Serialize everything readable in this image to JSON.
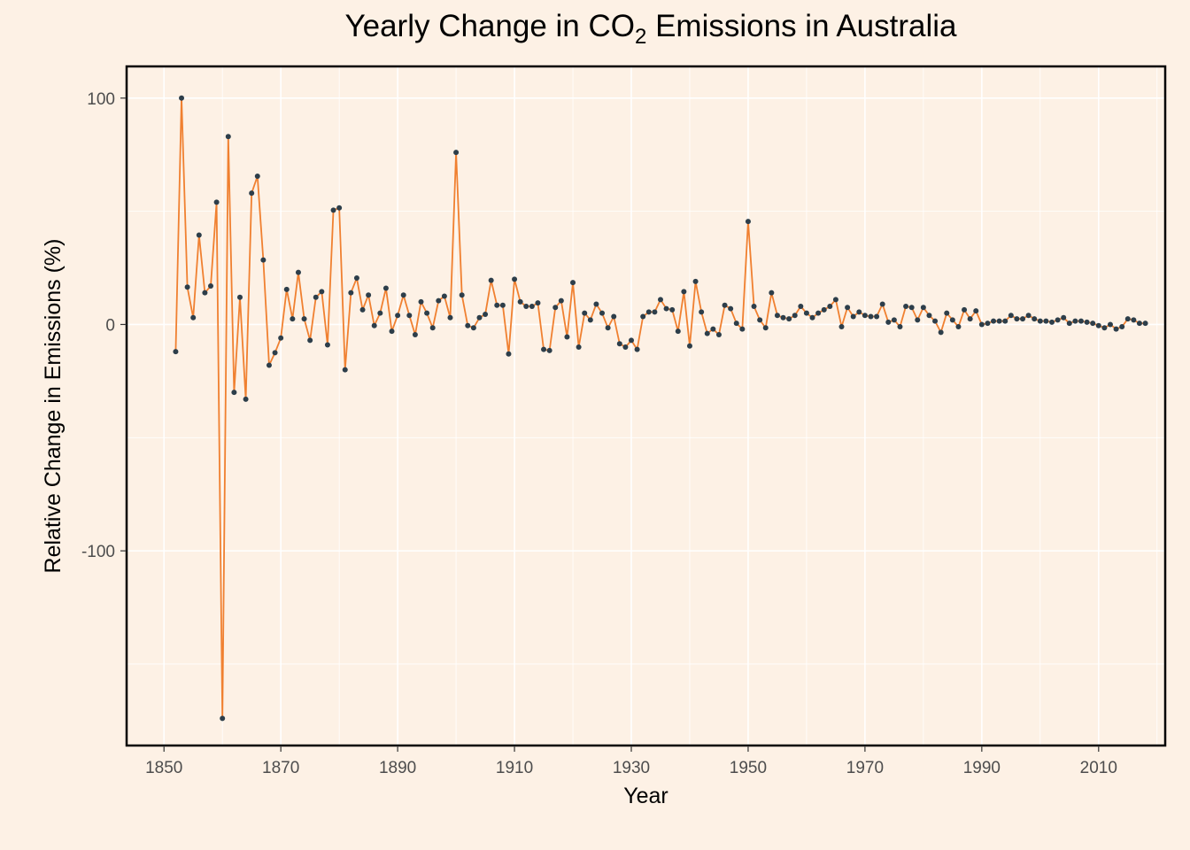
{
  "chart_data": {
    "type": "line",
    "title_prefix": "Yearly Change in CO",
    "title_subscript": "2",
    "title_suffix": " Emissions in Australia",
    "xlabel": "Year",
    "ylabel": "Relative Change in Emissions (%)",
    "xlim": [
      1843.6,
      2021.4
    ],
    "ylim": [
      -186,
      114
    ],
    "x_ticks": [
      1850,
      1870,
      1890,
      1910,
      1930,
      1950,
      1970,
      1990,
      2010
    ],
    "y_ticks": [
      -100,
      0,
      100
    ],
    "grid": true,
    "legend": "none",
    "line_color": "#f08030",
    "point_color": "#2d3e4a",
    "background_color": "#fdf1e5",
    "series": [
      {
        "x": [
          1852,
          1853,
          1854,
          1855,
          1856,
          1857,
          1858,
          1859,
          1860,
          1861,
          1862,
          1863,
          1864,
          1865,
          1866,
          1867,
          1868,
          1869,
          1870,
          1871,
          1872,
          1873,
          1874,
          1875,
          1876,
          1877,
          1878,
          1879,
          1880,
          1881,
          1882,
          1883,
          1884,
          1885,
          1886,
          1887,
          1888,
          1889,
          1890,
          1891,
          1892,
          1893,
          1894,
          1895,
          1896,
          1897,
          1898,
          1899,
          1900,
          1901,
          1902,
          1903,
          1904,
          1905,
          1906,
          1907,
          1908,
          1909,
          1910,
          1911,
          1912,
          1913,
          1914,
          1915,
          1916,
          1917,
          1918,
          1919,
          1920,
          1921,
          1922,
          1923,
          1924,
          1925,
          1926,
          1927,
          1928,
          1929,
          1930,
          1931,
          1932,
          1933,
          1934,
          1935,
          1936,
          1937,
          1938,
          1939,
          1940,
          1941,
          1942,
          1943,
          1944,
          1945,
          1946,
          1947,
          1948,
          1949,
          1950,
          1951,
          1952,
          1953,
          1954,
          1955,
          1956,
          1957,
          1958,
          1959,
          1960,
          1961,
          1962,
          1963,
          1964,
          1965,
          1966,
          1967,
          1968,
          1969,
          1970,
          1971,
          1972,
          1973,
          1974,
          1975,
          1976,
          1977,
          1978,
          1979,
          1980,
          1981,
          1982,
          1983,
          1984,
          1985,
          1986,
          1987,
          1988,
          1989,
          1990,
          1991,
          1992,
          1993,
          1994,
          1995,
          1996,
          1997,
          1998,
          1999,
          2000,
          2001,
          2002,
          2003,
          2004,
          2005,
          2006,
          2007,
          2008,
          2009,
          2010,
          2011,
          2012,
          2013,
          2014,
          2015,
          2016,
          2017,
          2018
        ],
        "values": [
          -12,
          100,
          16.5,
          3,
          39.5,
          14,
          17,
          54,
          -174,
          83,
          -30,
          12,
          -33,
          58,
          65.5,
          28.5,
          -18,
          -12.5,
          -6,
          15.5,
          2.5,
          23,
          2.5,
          -7,
          12,
          14.5,
          -9,
          50.5,
          51.5,
          -20,
          14,
          20.5,
          6.5,
          13,
          -0.5,
          5,
          16,
          -3,
          4,
          13,
          4,
          -4.5,
          10,
          5,
          -1.5,
          10.5,
          12.5,
          3,
          76,
          13,
          -0.5,
          -1.5,
          3,
          4.5,
          19.5,
          8.5,
          8.5,
          -13,
          20,
          10,
          8,
          8,
          9.5,
          -11,
          -11.5,
          7.5,
          10.5,
          -5.5,
          18.5,
          -10,
          5,
          2,
          9,
          5,
          -1.5,
          3.5,
          -8.5,
          -10,
          -7,
          -11,
          3.5,
          5.5,
          5.5,
          11,
          7,
          6.5,
          -3,
          14.5,
          -9.5,
          19,
          5.5,
          -4,
          -2,
          -4.5,
          8.5,
          7,
          0.5,
          -2,
          45.5,
          8,
          2,
          -1.5,
          14,
          4,
          3,
          2.5,
          4,
          8,
          5,
          3,
          5,
          6.5,
          8,
          11,
          -1,
          7.5,
          3.5,
          5.5,
          4,
          3.5,
          3.5,
          9,
          1,
          2,
          -1,
          8,
          7.5,
          2,
          7.5,
          4,
          1.5,
          -3.5,
          5,
          2,
          -1,
          6.5,
          2.5,
          6,
          0,
          0.5,
          1.5,
          1.5,
          1.5,
          4,
          2.5,
          2.5,
          4,
          2.5,
          1.5,
          1.5,
          1,
          2,
          3,
          0.5,
          1.5,
          1.5,
          1,
          0.5,
          -0.5,
          -1.5,
          0,
          -2,
          -1,
          2.5,
          2,
          0.5,
          0.5
        ]
      }
    ]
  }
}
